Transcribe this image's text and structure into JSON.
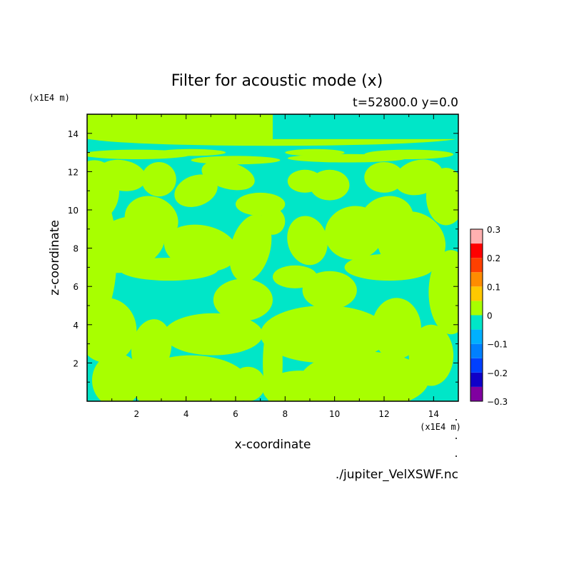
{
  "chart_data": {
    "type": "heatmap",
    "title": "Filter for acoustic mode (x)",
    "subtitle": "t=52800.0 y=0.0",
    "xlabel": "x-coordinate",
    "ylabel": "z-coordinate",
    "x_unit": "(x1E4 m)",
    "y_unit": "(x1E4 m)",
    "xlim": [
      0.0,
      15.0
    ],
    "ylim": [
      0.0,
      15.0
    ],
    "x_ticks": [
      "2",
      "4",
      "6",
      "8",
      "10",
      "12",
      "14"
    ],
    "y_ticks": [
      "2",
      "4",
      "6",
      "8",
      "10",
      "12",
      "14"
    ],
    "grid": false,
    "colorbar": {
      "placement": "right",
      "levels": [
        -0.3,
        -0.25,
        -0.2,
        -0.15,
        -0.1,
        -0.05,
        0,
        0.05,
        0.1,
        0.15,
        0.2,
        0.25,
        0.3
      ],
      "labels": [
        "0.3",
        "0.2",
        "0.1",
        "0",
        "−0.1",
        "−0.2",
        "−0.3"
      ],
      "colors": [
        "#8000a0",
        "#1000c8",
        "#0040ff",
        "#0080ff",
        "#00b0ff",
        "#00e6c8",
        "#a8ff00",
        "#ffc800",
        "#ff8c00",
        "#ff4000",
        "#ff0000",
        "#ffb0b0"
      ]
    },
    "field_colors": {
      "negative_small": "#00e6c8",
      "positive_small": "#a8ff00"
    }
  },
  "source_file": "./jupiter_VelXSWF.nc"
}
